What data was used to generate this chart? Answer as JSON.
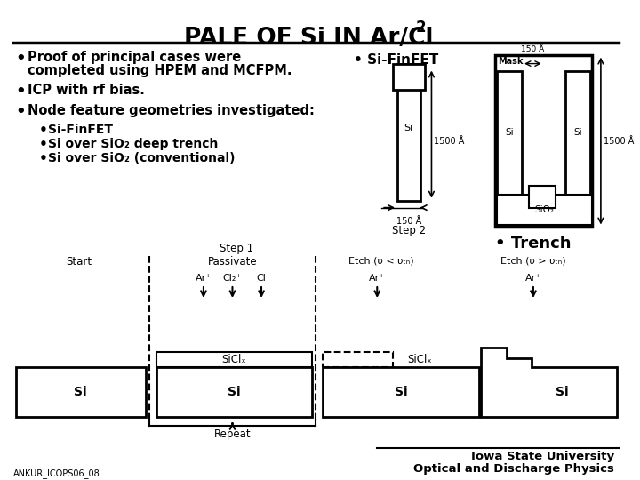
{
  "bg_color": "#ffffff",
  "title": "PALE OF Si IN Ar/Cl",
  "title_sub": "2",
  "footer_left": "ANKUR_ICOPS06_08",
  "footer_right1": "Iowa State University",
  "footer_right2": "Optical and Discharge Physics"
}
